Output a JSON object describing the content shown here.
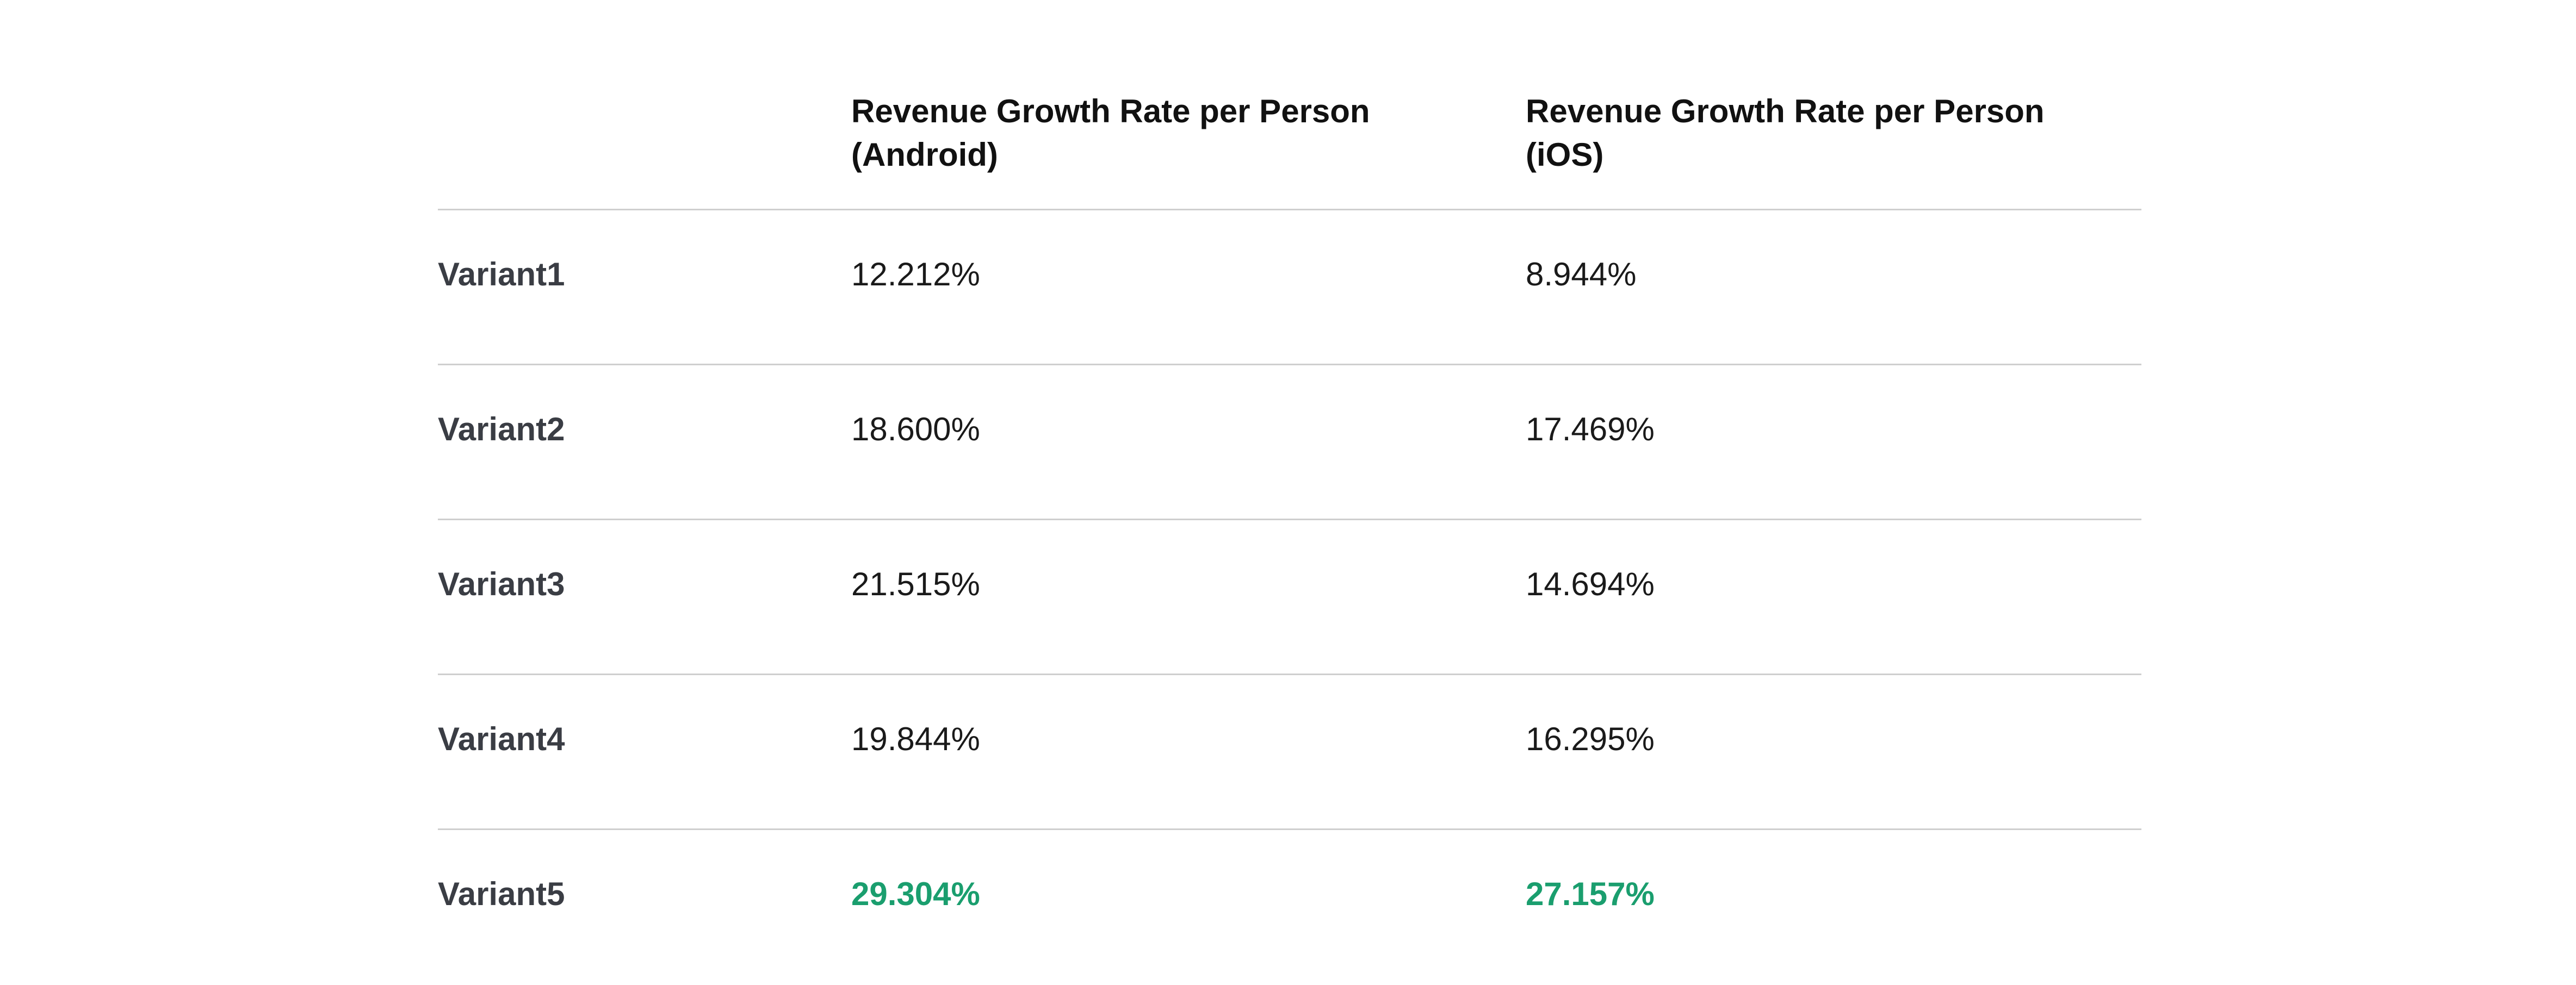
{
  "table": {
    "headers": {
      "variant": "",
      "android_line1": "Revenue Growth Rate per Person",
      "android_line2": "(Android)",
      "ios_line1": "Revenue Growth Rate per Person",
      "ios_line2": "(iOS)"
    },
    "rows": [
      {
        "variant": "Variant1",
        "android": "12.212%",
        "ios": "8.944%"
      },
      {
        "variant": "Variant2",
        "android": "18.600%",
        "ios": "17.469%"
      },
      {
        "variant": "Variant3",
        "android": "21.515%",
        "ios": "14.694%"
      },
      {
        "variant": "Variant4",
        "android": "19.844%",
        "ios": "16.295%"
      },
      {
        "variant": "Variant5",
        "android": "29.304%",
        "ios": "27.157%",
        "highlighted": true
      }
    ],
    "highlight_color": "#1a9e6e"
  }
}
